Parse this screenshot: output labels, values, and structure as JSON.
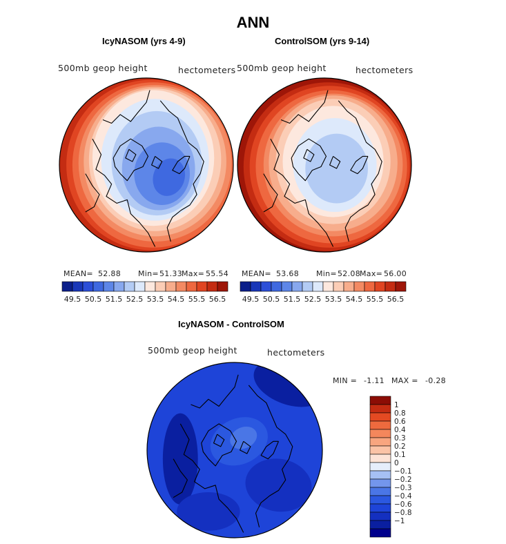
{
  "figure": {
    "title": "ANN"
  },
  "palette": [
    "#0b1f8a",
    "#1937b8",
    "#2c4fd8",
    "#3f69e0",
    "#5d86e8",
    "#88a8ee",
    "#b3cbf4",
    "#dde9fb",
    "#fde8de",
    "#fbcdb6",
    "#f7ad8c",
    "#f38a63",
    "#ee6840",
    "#e04522",
    "#c42c12",
    "#9e1608"
  ],
  "diff_palette": [
    "#00008c",
    "#0a1fa0",
    "#1430c0",
    "#1e44d8",
    "#2b58e0",
    "#4a76e6",
    "#7396ec",
    "#a6c0f4",
    "#e6eefb",
    "#fde3d6",
    "#fbc3a6",
    "#f8a57f",
    "#f4875c",
    "#ee6a3e",
    "#e44a22",
    "#c42c12",
    "#8c0d05"
  ],
  "chart_data": [
    {
      "type": "heatmap",
      "title": "IcyNASOM (yrs 4-9)",
      "variable": "500mb geop height",
      "units": "hectometers",
      "stats": {
        "mean_label": "MEAN=",
        "mean": "52.88",
        "min_label": "Min=",
        "min": "51.33",
        "max_label": "Max=",
        "max": "55.54"
      },
      "colorbar_ticks": [
        "49.5",
        "50.5",
        "51.5",
        "52.5",
        "53.5",
        "54.5",
        "55.5",
        "56.5"
      ],
      "levels": [
        49.5,
        50.0,
        50.5,
        51.0,
        51.5,
        52.0,
        52.5,
        53.0,
        53.5,
        54.0,
        54.5,
        55.0,
        55.5,
        56.0,
        56.5
      ],
      "min": 51.33,
      "max": 55.54
    },
    {
      "type": "heatmap",
      "title": "ControlSOM (yrs 9-14)",
      "variable": "500mb geop height",
      "units": "hectometers",
      "stats": {
        "mean_label": "MEAN=",
        "mean": "53.68",
        "min_label": "Min=",
        "min": "52.08",
        "max_label": "Max=",
        "max": "56.00"
      },
      "colorbar_ticks": [
        "49.5",
        "50.5",
        "51.5",
        "52.5",
        "53.5",
        "54.5",
        "55.5",
        "56.5"
      ],
      "levels": [
        49.5,
        50.0,
        50.5,
        51.0,
        51.5,
        52.0,
        52.5,
        53.0,
        53.5,
        54.0,
        54.5,
        55.0,
        55.5,
        56.0,
        56.5
      ],
      "min": 52.08,
      "max": 56.0
    },
    {
      "type": "heatmap",
      "title": "IcyNASOM - ControlSOM",
      "variable": "500mb geop height",
      "units": "hectometers",
      "stats": {
        "min_label": "MIN =",
        "min": "-1.11",
        "max_label": "MAX =",
        "max": "-0.28"
      },
      "colorbar_ticks": [
        "1",
        "0.8",
        "0.6",
        "0.4",
        "0.3",
        "0.2",
        "0.1",
        "0",
        "−0.1",
        "−0.2",
        "−0.3",
        "−0.4",
        "−0.6",
        "−0.8",
        "−1"
      ],
      "levels": [
        -1,
        -0.8,
        -0.6,
        -0.4,
        -0.3,
        -0.2,
        -0.1,
        0,
        0.1,
        0.2,
        0.3,
        0.4,
        0.6,
        0.8,
        1
      ],
      "min": -1.11,
      "max": -0.28
    }
  ]
}
